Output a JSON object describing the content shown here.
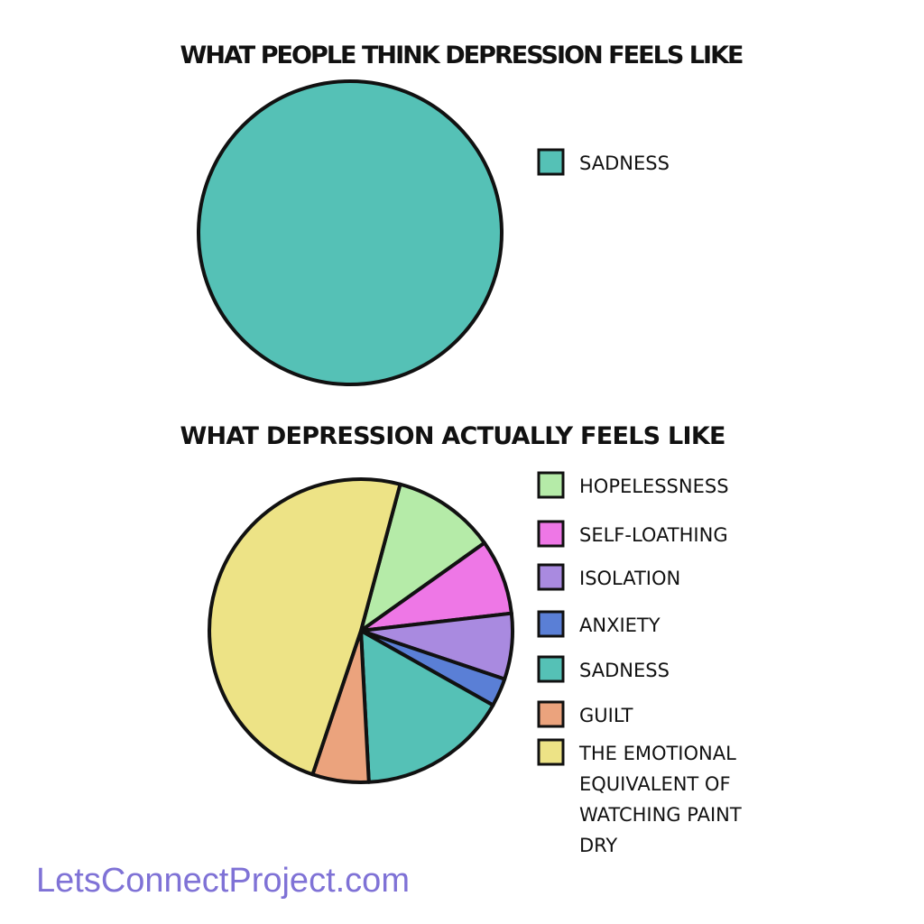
{
  "chart_data": [
    {
      "type": "pie",
      "title": "WHAT PEOPLE THINK DEPRESSION FEELS LIKE",
      "categories": [
        "SADNESS"
      ],
      "values": [
        100
      ],
      "colors": [
        "#55c1b6"
      ]
    },
    {
      "type": "pie",
      "title": "WHAT DEPRESSION ACTUALLY FEELS LIKE",
      "categories": [
        "HOPELESSNESS",
        "SELF-LOATHING",
        "ISOLATION",
        "ANXIETY",
        "SADNESS",
        "GUILT",
        "THE EMOTIONAL EQUIVALENT OF WATCHING PAINT DRY"
      ],
      "values": [
        11,
        8,
        7,
        3,
        16,
        6,
        49
      ],
      "colors": [
        "#b5eba8",
        "#ee77e6",
        "#a98ae0",
        "#5a7fd6",
        "#55c1b6",
        "#eba37d",
        "#ede386"
      ]
    }
  ],
  "footer": "LetsConnectProject.com"
}
